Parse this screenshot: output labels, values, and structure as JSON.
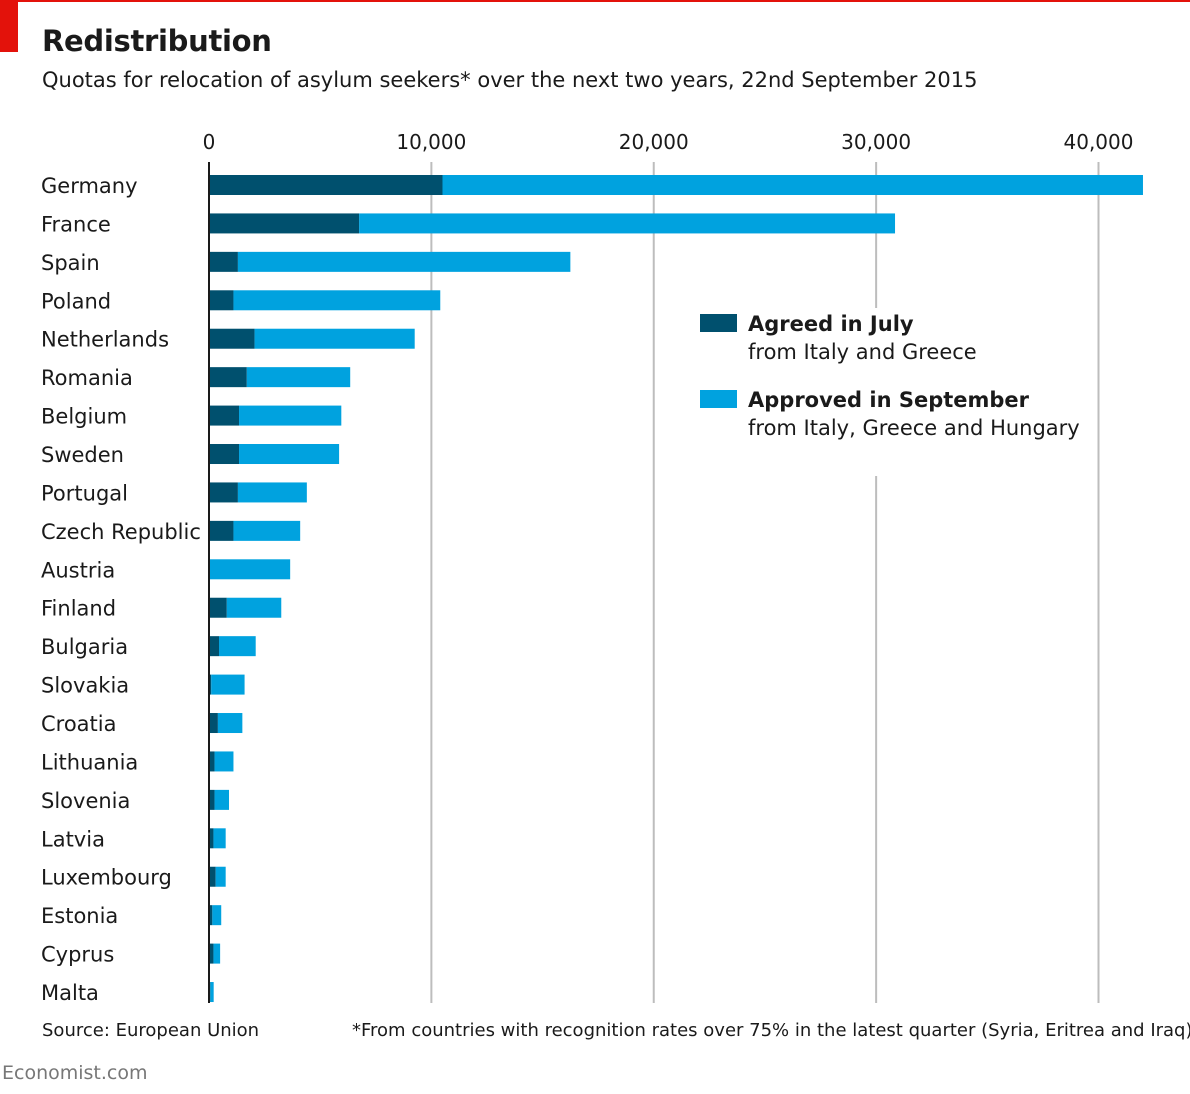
{
  "title": "Redistribution",
  "subtitle": "Quotas for relocation of asylum seekers* over the next two years, 22nd September 2015",
  "source": "Source: European Union",
  "footnote": "*From countries with recognition rates over 75% in the latest quarter (Syria, Eritrea and Iraq)",
  "brand": "Economist.com",
  "colors": {
    "july": "#00506e",
    "september": "#00a2df",
    "grid": "#bdbdbd",
    "accent": "#e3120b"
  },
  "legend": [
    {
      "name": "Agreed in July",
      "desc": "from Italy and Greece"
    },
    {
      "name": "Approved in September",
      "desc": "from Italy, Greece and Hungary"
    }
  ],
  "chart_data": {
    "type": "bar",
    "orientation": "horizontal",
    "stacked": true,
    "title": "Redistribution",
    "subtitle": "Quotas for relocation of asylum seekers* over the next two years, 22nd September 2015",
    "xlim": [
      0,
      42000
    ],
    "xticks": [
      0,
      10000,
      20000,
      30000,
      40000
    ],
    "xtick_labels": [
      "0",
      "10,000",
      "20,000",
      "30,000",
      "40,000"
    ],
    "grid": true,
    "legend_position": "right",
    "categories": [
      "Germany",
      "France",
      "Spain",
      "Poland",
      "Netherlands",
      "Romania",
      "Belgium",
      "Sweden",
      "Portugal",
      "Czech Republic",
      "Austria",
      "Finland",
      "Bulgaria",
      "Slovakia",
      "Croatia",
      "Lithuania",
      "Slovenia",
      "Latvia",
      "Luxembourg",
      "Estonia",
      "Cyprus",
      "Malta"
    ],
    "series": [
      {
        "name": "Agreed in July",
        "values": [
          10500,
          6750,
          1300,
          1100,
          2050,
          1700,
          1350,
          1350,
          1300,
          1100,
          0,
          800,
          450,
          100,
          400,
          250,
          250,
          200,
          300,
          150,
          200,
          60
        ]
      },
      {
        "name": "Approved in September",
        "values": [
          31500,
          24100,
          14950,
          9300,
          7200,
          4650,
          4600,
          4500,
          3100,
          3000,
          3650,
          2450,
          1650,
          1500,
          1100,
          850,
          650,
          550,
          450,
          400,
          300,
          150
        ]
      }
    ]
  }
}
